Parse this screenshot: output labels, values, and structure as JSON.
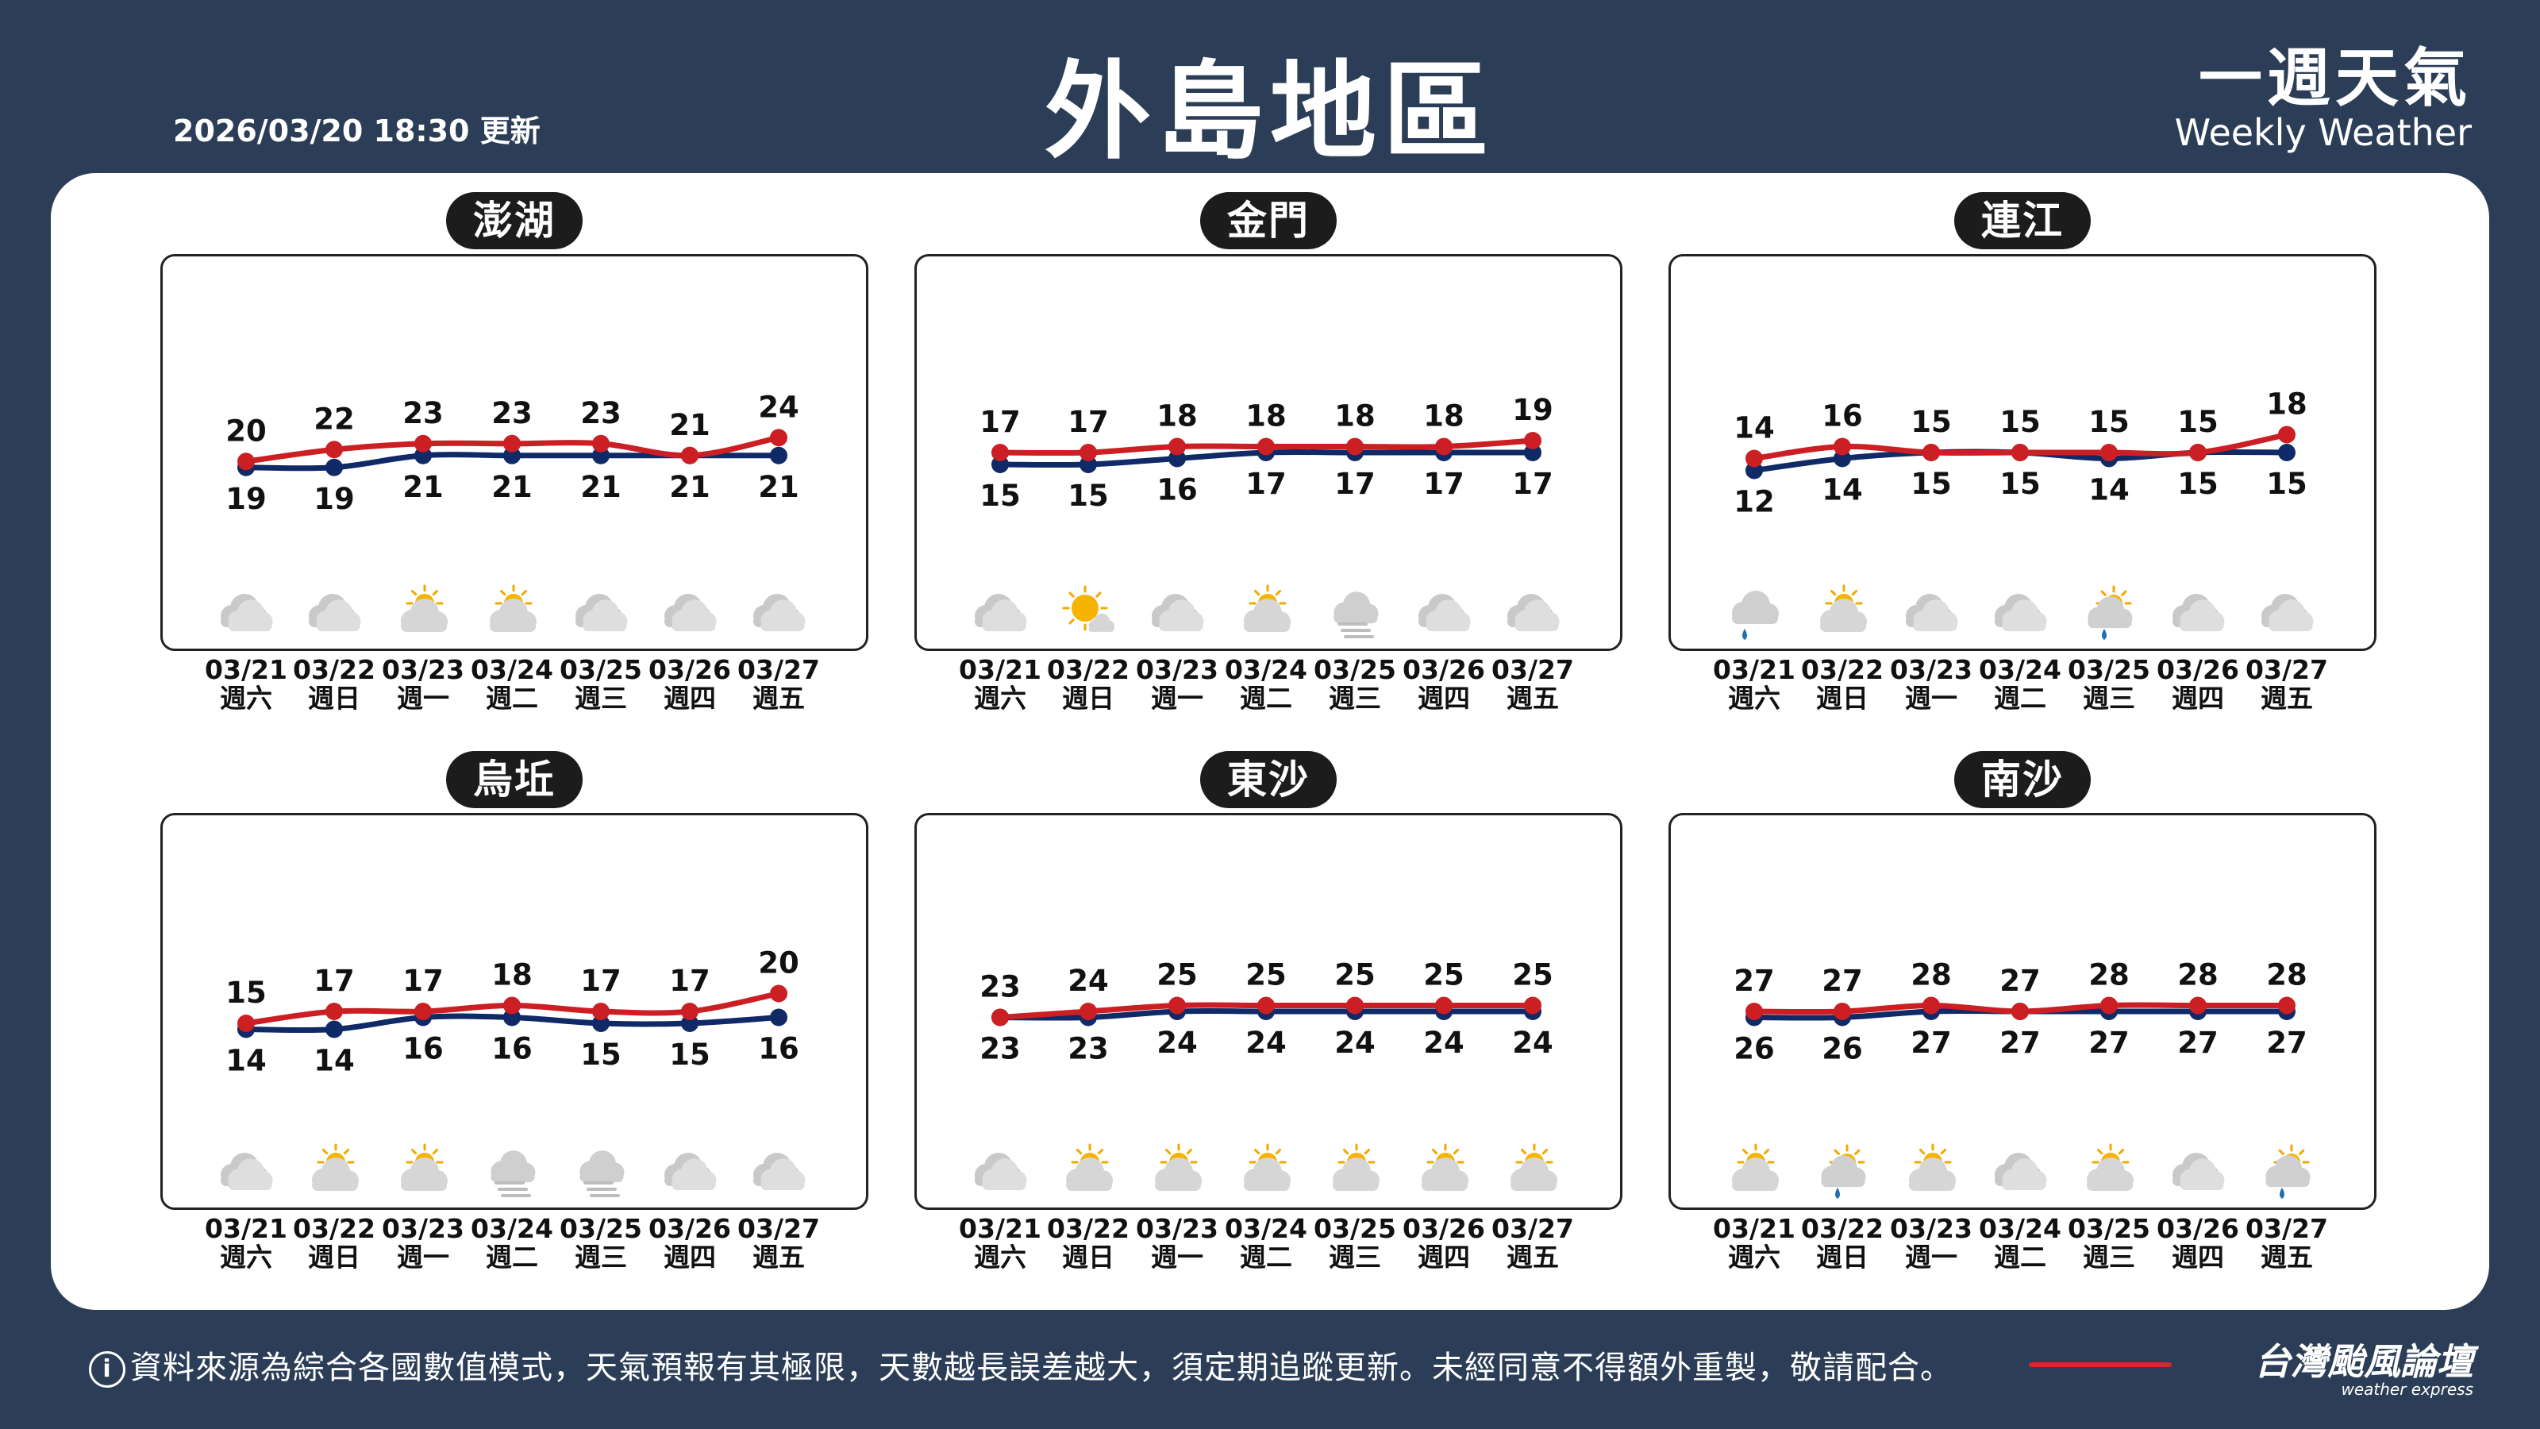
{
  "header": {
    "updated": "2026/03/20 18:30 更新",
    "title": "外島地區",
    "brand_zh": "一週天氣",
    "brand_en": "Weekly Weather"
  },
  "colors": {
    "background": "#2c3e57",
    "high_line": "#cc1f24",
    "low_line": "#0f2a66",
    "card": "#ffffff"
  },
  "days": [
    {
      "date": "03/21",
      "weekday": "週六"
    },
    {
      "date": "03/22",
      "weekday": "週日"
    },
    {
      "date": "03/23",
      "weekday": "週一"
    },
    {
      "date": "03/24",
      "weekday": "週二"
    },
    {
      "date": "03/25",
      "weekday": "週三"
    },
    {
      "date": "03/26",
      "weekday": "週四"
    },
    {
      "date": "03/27",
      "weekday": "週五"
    }
  ],
  "chart_data": [
    {
      "type": "line",
      "title": "澎湖",
      "x": [
        "03/21",
        "03/22",
        "03/23",
        "03/24",
        "03/25",
        "03/26",
        "03/27"
      ],
      "series": [
        {
          "values": [
            20,
            22,
            23,
            23,
            23,
            21,
            24
          ]
        },
        {
          "values": [
            19,
            19,
            21,
            21,
            21,
            21,
            21
          ]
        }
      ],
      "icons": [
        "cloudy-icon",
        "cloudy-icon",
        "partly-sunny-icon",
        "partly-sunny-icon",
        "cloudy-icon",
        "cloudy-icon",
        "cloudy-icon"
      ]
    },
    {
      "type": "line",
      "title": "金門",
      "x": [
        "03/21",
        "03/22",
        "03/23",
        "03/24",
        "03/25",
        "03/26",
        "03/27"
      ],
      "series": [
        {
          "values": [
            17,
            17,
            18,
            18,
            18,
            18,
            19
          ]
        },
        {
          "values": [
            15,
            15,
            16,
            17,
            17,
            17,
            17
          ]
        }
      ],
      "icons": [
        "cloudy-icon",
        "sunny-cloud-icon",
        "cloudy-icon",
        "partly-sunny-icon",
        "fog-icon",
        "cloudy-icon",
        "cloudy-icon"
      ]
    },
    {
      "type": "line",
      "title": "連江",
      "x": [
        "03/21",
        "03/22",
        "03/23",
        "03/24",
        "03/25",
        "03/26",
        "03/27"
      ],
      "series": [
        {
          "values": [
            14,
            16,
            15,
            15,
            15,
            15,
            18
          ]
        },
        {
          "values": [
            12,
            14,
            15,
            15,
            14,
            15,
            15
          ]
        }
      ],
      "icons": [
        "rain-icon",
        "partly-sunny-icon",
        "cloudy-icon",
        "cloudy-icon",
        "sun-shower-icon",
        "cloudy-icon",
        "cloudy-icon"
      ]
    },
    {
      "type": "line",
      "title": "烏坵",
      "x": [
        "03/21",
        "03/22",
        "03/23",
        "03/24",
        "03/25",
        "03/26",
        "03/27"
      ],
      "series": [
        {
          "values": [
            15,
            17,
            17,
            18,
            17,
            17,
            20
          ]
        },
        {
          "values": [
            14,
            14,
            16,
            16,
            15,
            15,
            16
          ]
        }
      ],
      "icons": [
        "cloudy-icon",
        "partly-sunny-icon",
        "partly-sunny-icon",
        "fog-icon",
        "fog-icon",
        "cloudy-icon",
        "cloudy-icon"
      ]
    },
    {
      "type": "line",
      "title": "東沙",
      "x": [
        "03/21",
        "03/22",
        "03/23",
        "03/24",
        "03/25",
        "03/26",
        "03/27"
      ],
      "series": [
        {
          "values": [
            23,
            24,
            25,
            25,
            25,
            25,
            25
          ]
        },
        {
          "values": [
            23,
            23,
            24,
            24,
            24,
            24,
            24
          ]
        }
      ],
      "icons": [
        "cloudy-icon",
        "partly-sunny-icon",
        "partly-sunny-icon",
        "partly-sunny-icon",
        "partly-sunny-icon",
        "partly-sunny-icon",
        "partly-sunny-icon"
      ]
    },
    {
      "type": "line",
      "title": "南沙",
      "x": [
        "03/21",
        "03/22",
        "03/23",
        "03/24",
        "03/25",
        "03/26",
        "03/27"
      ],
      "series": [
        {
          "values": [
            27,
            27,
            28,
            27,
            28,
            28,
            28
          ]
        },
        {
          "values": [
            26,
            26,
            27,
            27,
            27,
            27,
            27
          ]
        }
      ],
      "icons": [
        "partly-sunny-icon",
        "sun-shower-icon",
        "partly-sunny-icon",
        "cloudy-icon",
        "partly-sunny-icon",
        "cloudy-icon",
        "sun-shower-icon"
      ]
    }
  ],
  "footer": {
    "info_icon": "i",
    "disclaimer": "資料來源為綜合各國數值模式，天氣預報有其極限，天數越長誤差越大，須定期追蹤更新。未經同意不得額外重製，敬請配合。",
    "logo_zh": "台灣颱風論壇",
    "logo_en": "weather express"
  }
}
